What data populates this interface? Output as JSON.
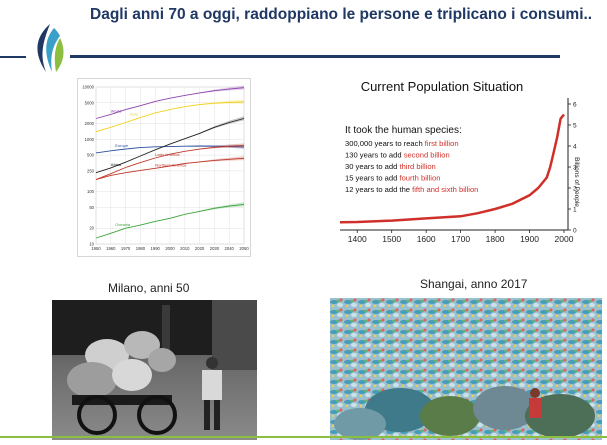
{
  "slide": {
    "title": "Dagli anni 70 a oggi, raddoppiano le persone e triplicano i consumi..",
    "caption_left": "Milano, anni 50",
    "caption_right": "Shangai, anno 2017"
  },
  "colors": {
    "title_blue": "#1f3864",
    "accent_green": "#8cbf3f",
    "curve_red": "#d0302a"
  },
  "icons": {
    "logo": "flame-leaf-logo"
  },
  "chart_data": [
    {
      "type": "line",
      "y_scale": "log",
      "x_ticks": [
        "1950",
        "1960",
        "1970",
        "1980",
        "1990",
        "2000",
        "2010",
        "2020",
        "2030",
        "2040",
        "2050"
      ],
      "y_ticks": [
        "10000",
        "5000",
        "2000",
        "1000",
        "500",
        "250",
        "100",
        "50",
        "20",
        "10"
      ],
      "x": [
        1950,
        1960,
        1970,
        1980,
        1990,
        2000,
        2010,
        2020,
        2030,
        2040,
        2050
      ],
      "series": [
        {
          "name": "World",
          "color": "#8e44ad",
          "values": [
            2500,
            3000,
            3700,
            4400,
            5300,
            6100,
            6900,
            7700,
            8500,
            9100,
            9700
          ]
        },
        {
          "name": "Asia",
          "color": "#f2d21b",
          "values": [
            1400,
            1700,
            2100,
            2600,
            3200,
            3700,
            4200,
            4600,
            4900,
            5100,
            5200
          ]
        },
        {
          "name": "Europe",
          "color": "#2b4fa0",
          "values": [
            550,
            605,
            655,
            695,
            720,
            726,
            738,
            745,
            740,
            730,
            715
          ]
        },
        {
          "name": "Africa",
          "color": "#222222",
          "values": [
            230,
            285,
            365,
            480,
            630,
            810,
            1030,
            1300,
            1700,
            2100,
            2500
          ]
        },
        {
          "name": "Latin America",
          "color": "#c0392b",
          "values": [
            170,
            220,
            290,
            360,
            440,
            520,
            590,
            650,
            700,
            740,
            760
          ]
        },
        {
          "name": "Northern America",
          "color": "#c0392b",
          "values": [
            170,
            205,
            230,
            255,
            280,
            310,
            345,
            370,
            395,
            415,
            435
          ]
        },
        {
          "name": "Oceania",
          "color": "#3aa43a",
          "values": [
            13,
            16,
            20,
            23,
            27,
            31,
            37,
            42,
            48,
            53,
            57
          ]
        }
      ]
    },
    {
      "type": "line",
      "title": "Current Population Situation",
      "ylabel": "Billions of People",
      "x_ticks": [
        "1400",
        "1500",
        "1600",
        "1700",
        "1800",
        "1900",
        "2000"
      ],
      "y_ticks": [
        "0",
        "1",
        "2",
        "3",
        "4",
        "5",
        "6"
      ],
      "xlim": [
        1350,
        2000
      ],
      "ylim": [
        0,
        6
      ],
      "x": [
        1350,
        1400,
        1500,
        1600,
        1700,
        1750,
        1800,
        1850,
        1900,
        1925,
        1950,
        1960,
        1970,
        1980,
        1990,
        2000
      ],
      "values": [
        0.37,
        0.38,
        0.45,
        0.55,
        0.65,
        0.8,
        1.0,
        1.25,
        1.65,
        2.0,
        2.5,
        3.0,
        3.7,
        4.4,
        5.3,
        5.5
      ],
      "annotations": {
        "intro": "It took the human species:",
        "lines": [
          {
            "text": "300,000 years to reach ",
            "highlight": "first billion"
          },
          {
            "text": "130 years to add ",
            "highlight": "second billion"
          },
          {
            "text": "30 years to add ",
            "highlight": "third billion"
          },
          {
            "text": "15 years to add ",
            "highlight": "fourth billion"
          },
          {
            "text": "12 years to add the ",
            "highlight": "fifth and sixth billion"
          }
        ]
      }
    }
  ]
}
